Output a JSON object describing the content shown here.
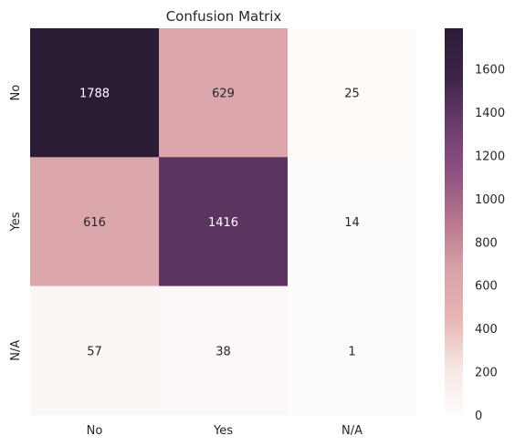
{
  "chart_data": {
    "type": "heatmap",
    "title": "Confusion Matrix",
    "xlabel": "",
    "ylabel": "",
    "x_categories": [
      "No",
      "Yes",
      "N/A"
    ],
    "y_categories": [
      "No",
      "Yes",
      "N/A"
    ],
    "values": [
      [
        1788,
        629,
        25
      ],
      [
        616,
        1416,
        14
      ],
      [
        57,
        38,
        1
      ]
    ],
    "colorbar": {
      "min": 0,
      "max": 1788,
      "ticks": [
        0,
        200,
        400,
        600,
        800,
        1000,
        1200,
        1400,
        1600
      ],
      "colormap": [
        "#fefcfb",
        "#f6e6e3",
        "#e6b5b4",
        "#d8a3aa",
        "#b9778d",
        "#8e5282",
        "#6a3c6c",
        "#3d2447",
        "#2b1c36"
      ]
    },
    "grid": false
  }
}
